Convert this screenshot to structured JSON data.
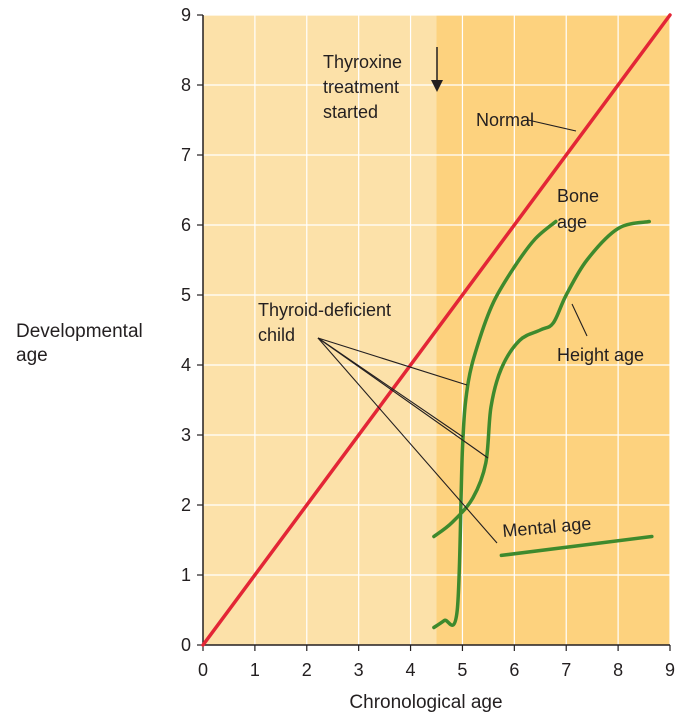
{
  "chart_data": {
    "type": "line",
    "xlabel": "Chronological age",
    "ylabel_lines": [
      "Developmental",
      "age"
    ],
    "xlim": [
      0,
      9
    ],
    "ylim": [
      0,
      9
    ],
    "xticks": [
      0,
      1,
      2,
      3,
      4,
      5,
      6,
      7,
      8,
      9
    ],
    "yticks": [
      0,
      1,
      2,
      3,
      4,
      5,
      6,
      7,
      8,
      9
    ],
    "grid": true,
    "treatment_start_x": 4.5,
    "colors": {
      "bg_before": "#fce1a9",
      "bg_after": "#fdd27e",
      "grid": "#ffffff",
      "normal": "#e32636",
      "child": "#3e8a2d",
      "text": "#231f20",
      "axis": "#231f20"
    },
    "series": [
      {
        "name": "Normal",
        "kind": "normal",
        "x": [
          0,
          9
        ],
        "y": [
          0,
          9
        ]
      },
      {
        "name": "Bone age",
        "kind": "child",
        "x": [
          4.45,
          4.65,
          4.9,
          5.0,
          5.1,
          5.3,
          5.6,
          6.0,
          6.4,
          6.8
        ],
        "y": [
          0.25,
          0.35,
          0.5,
          2.8,
          3.7,
          4.3,
          4.9,
          5.4,
          5.8,
          6.05
        ]
      },
      {
        "name": "Height age",
        "kind": "child",
        "x": [
          4.45,
          4.8,
          5.2,
          5.45,
          5.55,
          5.75,
          6.1,
          6.5,
          6.75,
          7.0,
          7.4,
          8.0,
          8.6
        ],
        "y": [
          1.55,
          1.75,
          2.1,
          2.6,
          3.4,
          3.95,
          4.35,
          4.5,
          4.6,
          5.0,
          5.5,
          5.95,
          6.05
        ]
      },
      {
        "name": "Mental age",
        "kind": "child",
        "x": [
          5.75,
          8.65
        ],
        "y": [
          1.28,
          1.55
        ]
      }
    ],
    "annotations": {
      "treatment": [
        "Thyroxine",
        "treatment",
        "started"
      ],
      "normal": "Normal",
      "bone": [
        "Bone",
        "age"
      ],
      "height": "Height age",
      "mental": "Mental age",
      "thyroid": [
        "Thyroid-deficient",
        "child"
      ]
    }
  }
}
